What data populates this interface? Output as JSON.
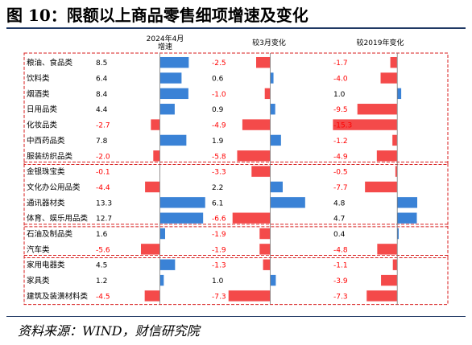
{
  "title": "图 10：限额以上商品零售细项增速及变化",
  "source": "资料来源：WIND，财信研究院",
  "colors": {
    "positive": "#3a82d6",
    "negative": "#f44a4a",
    "group_border": "#d81e1e",
    "axis": "#7a7a7a",
    "negative_text": "#ff0000"
  },
  "chart_data": {
    "type": "bar",
    "orientation": "horizontal",
    "categories": [
      "粮油、食品类",
      "饮料类",
      "烟酒类",
      "日用品类",
      "化妆品类",
      "中西药品类",
      "服装纺织品类",
      "金银珠宝类",
      "文化办公用品类",
      "通讯器材类",
      "体育、娱乐用品类",
      "石油及制品类",
      "汽车类",
      "家用电器类",
      "家具类",
      "建筑及装潢材料类"
    ],
    "groups": [
      [
        0,
        6
      ],
      [
        7,
        10
      ],
      [
        11,
        12
      ],
      [
        13,
        15
      ]
    ],
    "panels": [
      {
        "header": "2024年4月\n增速",
        "header_lines": [
          "2024年4月",
          "增速"
        ],
        "values": [
          8.5,
          6.4,
          8.4,
          4.4,
          -2.7,
          7.8,
          -2.0,
          -0.1,
          -4.4,
          13.3,
          12.7,
          1.6,
          -5.6,
          4.5,
          1.2,
          -4.5
        ],
        "labels": [
          "8.5",
          "6.4",
          "8.4",
          "4.4",
          "-2.7",
          "7.8",
          "-2.0",
          "-0.1",
          "-4.4",
          "13.3",
          "12.7",
          "1.6",
          "-5.6",
          "4.5",
          "1.2",
          "-4.5"
        ],
        "xlim": [
          -6,
          14
        ]
      },
      {
        "header": "较3月变化",
        "header_lines": [
          "较3月变化"
        ],
        "values": [
          -2.5,
          0.6,
          -1.0,
          0.9,
          -4.9,
          1.9,
          -5.8,
          -3.3,
          2.2,
          6.1,
          -6.6,
          -1.9,
          -1.9,
          -1.3,
          1.0,
          -7.3
        ],
        "labels": [
          "-2.5",
          "0.6",
          "-1.0",
          "0.9",
          "-4.9",
          "1.9",
          "-5.8",
          "-3.3",
          "2.2",
          "6.1",
          "-6.6",
          "-1.9",
          "-1.9",
          "-1.3",
          "1.0",
          "-7.3"
        ],
        "xlim": [
          -7.5,
          6.5
        ]
      },
      {
        "header": "较2019年变化",
        "header_lines": [
          "较2019年变化"
        ],
        "values": [
          -1.7,
          -4.0,
          1.0,
          -9.5,
          -15.3,
          -1.2,
          -4.9,
          -0.5,
          -7.7,
          4.8,
          4.7,
          0.4,
          -4.8,
          -1.1,
          -3.9,
          -7.3
        ],
        "labels": [
          "-1.7",
          "-4.0",
          "1.0",
          "-9.5",
          "-15.3",
          "-1.2",
          "-4.9",
          "-0.5",
          "-7.7",
          "4.8",
          "4.7",
          "0.4",
          "-4.8",
          "-1.1",
          "-3.9",
          "-7.3"
        ],
        "xlim": [
          -15.5,
          5.5
        ]
      }
    ]
  }
}
